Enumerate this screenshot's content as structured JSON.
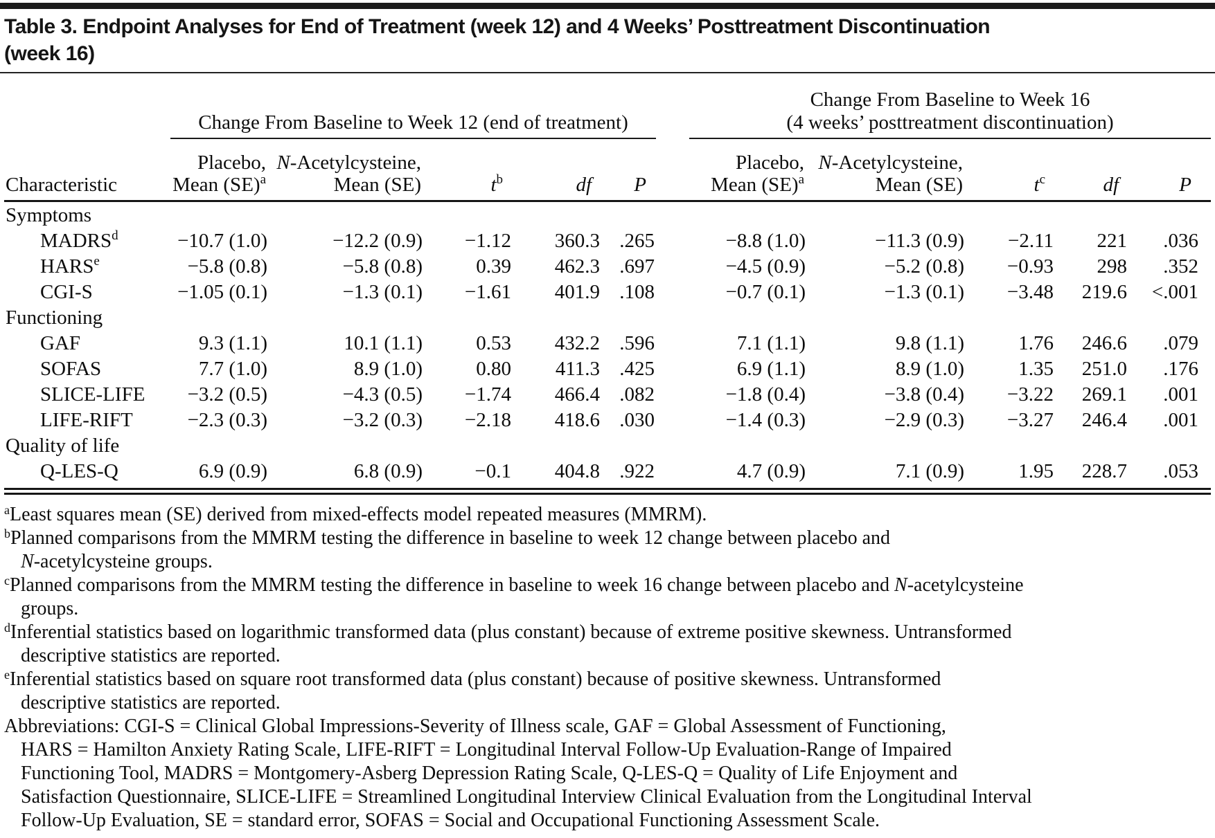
{
  "page": {
    "background": "#ffffff",
    "text_color": "#0d0d0d",
    "rule_color": "#1a1a1a"
  },
  "title": {
    "line1": "Table 3. Endpoint Analyses for End of Treatment (week 12) and 4 Weeks’ Posttreatment Discontinuation",
    "line2": "(week 16)"
  },
  "header": {
    "characteristic": "Characteristic",
    "week12_span": "Change From Baseline to Week 12 (end of treatment)",
    "week16_line1": "Change From Baseline to Week 16",
    "week16_line2": "(4 weeks’ posttreatment discontinuation)",
    "placebo": "Placebo,",
    "mean_se": "Mean (SE)",
    "mean_se_sup": "a",
    "nac_italic": "N",
    "nac_rest": "-Acetylcysteine,",
    "t_label": "t",
    "t_sup_week12": "b",
    "t_sup_week16": "c",
    "df_label": "df",
    "p_label": "P"
  },
  "rows": [
    {
      "type": "group",
      "label": "Symptoms"
    },
    {
      "type": "data",
      "label": "MADRS",
      "label_sup": "d",
      "w12": [
        "−10.7 (1.0)",
        "−12.2 (0.9)",
        "−1.12",
        "360.3",
        ".265"
      ],
      "w16": [
        "−8.8 (1.0)",
        "−11.3 (0.9)",
        "−2.11",
        "221",
        ".036"
      ]
    },
    {
      "type": "data",
      "label": "HARS",
      "label_sup": "e",
      "w12": [
        "−5.8 (0.8)",
        "−5.8 (0.8)",
        "0.39",
        "462.3",
        ".697"
      ],
      "w16": [
        "−4.5 (0.9)",
        "−5.2 (0.8)",
        "−0.93",
        "298",
        ".352"
      ]
    },
    {
      "type": "data",
      "label": "CGI-S",
      "label_sup": "",
      "w12": [
        "−1.05 (0.1)",
        "−1.3 (0.1)",
        "−1.61",
        "401.9",
        ".108"
      ],
      "w16": [
        "−0.7 (0.1)",
        "−1.3 (0.1)",
        "−3.48",
        "219.6",
        "<.001"
      ]
    },
    {
      "type": "group",
      "label": "Functioning"
    },
    {
      "type": "data",
      "label": "GAF",
      "label_sup": "",
      "w12": [
        "9.3 (1.1)",
        "10.1 (1.1)",
        "0.53",
        "432.2",
        ".596"
      ],
      "w16": [
        "7.1 (1.1)",
        "9.8 (1.1)",
        "1.76",
        "246.6",
        ".079"
      ]
    },
    {
      "type": "data",
      "label": "SOFAS",
      "label_sup": "",
      "w12": [
        "7.7 (1.0)",
        "8.9 (1.0)",
        "0.80",
        "411.3",
        ".425"
      ],
      "w16": [
        "6.9 (1.1)",
        "8.9 (1.0)",
        "1.35",
        "251.0",
        ".176"
      ]
    },
    {
      "type": "data",
      "label": "SLICE-LIFE",
      "label_sup": "",
      "w12": [
        "−3.2 (0.5)",
        "−4.3 (0.5)",
        "−1.74",
        "466.4",
        ".082"
      ],
      "w16": [
        "−1.8 (0.4)",
        "−3.8 (0.4)",
        "−3.22",
        "269.1",
        ".001"
      ]
    },
    {
      "type": "data",
      "label": "LIFE-RIFT",
      "label_sup": "",
      "w12": [
        "−2.3 (0.3)",
        "−3.2 (0.3)",
        "−2.18",
        "418.6",
        ".030"
      ],
      "w16": [
        "−1.4 (0.3)",
        "−2.9 (0.3)",
        "−3.27",
        "246.4",
        ".001"
      ]
    },
    {
      "type": "group",
      "label": "Quality of life"
    },
    {
      "type": "data",
      "label": "Q-LES-Q",
      "label_sup": "",
      "w12": [
        "6.9 (0.9)",
        "6.8 (0.9)",
        "−0.1",
        "404.8",
        ".922"
      ],
      "w16": [
        "4.7 (0.9)",
        "7.1 (0.9)",
        "1.95",
        "228.7",
        ".053"
      ]
    }
  ],
  "footnotes": [
    {
      "indent": false,
      "segs": [
        {
          "s": "sup",
          "t": "a"
        },
        {
          "s": "n",
          "t": "Least squares mean (SE) derived from mixed-effects model repeated measures (MMRM)."
        }
      ]
    },
    {
      "indent": false,
      "segs": [
        {
          "s": "sup",
          "t": "b"
        },
        {
          "s": "n",
          "t": "Planned comparisons from the MMRM testing the difference in baseline to week 12 change between placebo and"
        }
      ]
    },
    {
      "indent": true,
      "segs": [
        {
          "s": "i",
          "t": "N"
        },
        {
          "s": "n",
          "t": "-acetylcysteine groups."
        }
      ]
    },
    {
      "indent": false,
      "segs": [
        {
          "s": "sup",
          "t": "c"
        },
        {
          "s": "n",
          "t": "Planned comparisons from the MMRM testing the difference in baseline to week 16 change between placebo and "
        },
        {
          "s": "i",
          "t": "N"
        },
        {
          "s": "n",
          "t": "-acetylcysteine"
        }
      ]
    },
    {
      "indent": true,
      "segs": [
        {
          "s": "n",
          "t": "groups."
        }
      ]
    },
    {
      "indent": false,
      "segs": [
        {
          "s": "sup",
          "t": "d"
        },
        {
          "s": "n",
          "t": "Inferential statistics based on logarithmic transformed data (plus constant) because of extreme positive skewness. Untransformed"
        }
      ]
    },
    {
      "indent": true,
      "segs": [
        {
          "s": "n",
          "t": "descriptive statistics are reported."
        }
      ]
    },
    {
      "indent": false,
      "segs": [
        {
          "s": "sup",
          "t": "e"
        },
        {
          "s": "n",
          "t": "Inferential statistics based on square root transformed data (plus constant) because of positive skewness. Untransformed"
        }
      ]
    },
    {
      "indent": true,
      "segs": [
        {
          "s": "n",
          "t": "descriptive statistics are reported."
        }
      ]
    },
    {
      "indent": false,
      "segs": [
        {
          "s": "n",
          "t": "Abbreviations: CGI-S = Clinical Global Impressions-Severity of Illness scale, GAF = Global Assessment of Functioning,"
        }
      ]
    },
    {
      "indent": true,
      "segs": [
        {
          "s": "n",
          "t": "HARS = Hamilton Anxiety Rating Scale, LIFE-RIFT = Longitudinal Interval Follow-Up Evaluation-Range of Impaired"
        }
      ]
    },
    {
      "indent": true,
      "segs": [
        {
          "s": "n",
          "t": "Functioning Tool, MADRS = Montgomery-Asberg Depression Rating Scale, Q-LES-Q = Quality of Life Enjoyment and"
        }
      ]
    },
    {
      "indent": true,
      "segs": [
        {
          "s": "n",
          "t": "Satisfaction Questionnaire, SLICE-LIFE = Streamlined Longitudinal Interview Clinical Evaluation from the Longitudinal Interval"
        }
      ]
    },
    {
      "indent": true,
      "segs": [
        {
          "s": "n",
          "t": "Follow-Up Evaluation, SE = standard error, SOFAS = Social and Occupational Functioning Assessment Scale."
        }
      ]
    }
  ]
}
